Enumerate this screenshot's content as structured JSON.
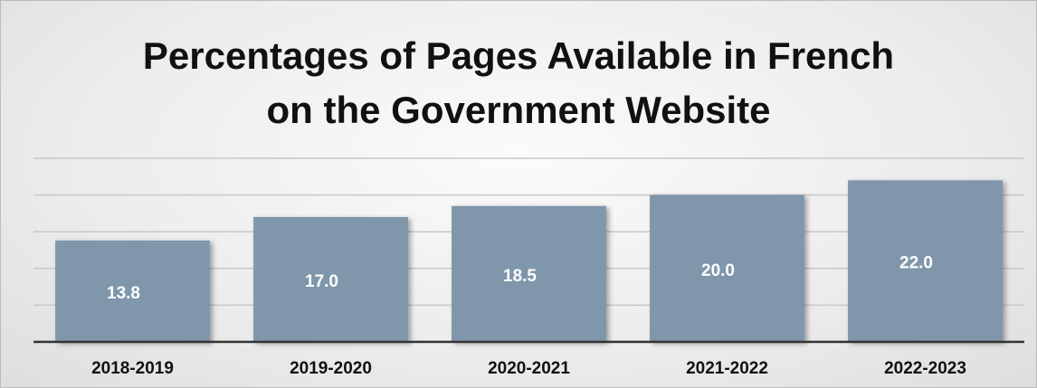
{
  "chart_data": {
    "type": "bar",
    "title": "Percentages of Pages Available in French\non the Government Website",
    "categories": [
      "2018-2019",
      "2019-2020",
      "2020-2021",
      "2021-2022",
      "2022-2023"
    ],
    "values": [
      13.8,
      17.0,
      18.5,
      20.0,
      22.0
    ],
    "value_labels": [
      "13.8",
      "17.0",
      "18.5",
      "20.0",
      "22.0"
    ],
    "color": "#7f96ab",
    "ylim": [
      0,
      25
    ],
    "yticks": [
      0,
      5,
      10,
      15,
      20,
      25
    ],
    "grid": true
  }
}
